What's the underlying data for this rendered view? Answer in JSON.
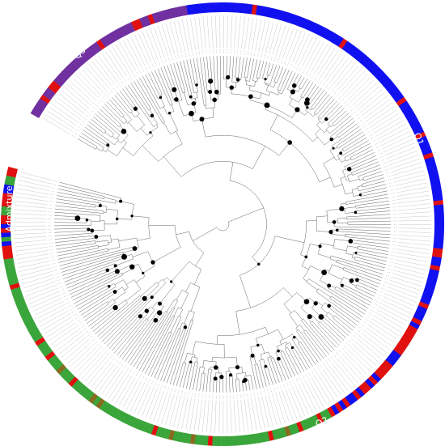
{
  "groups": [
    {
      "label": "Q1"
    },
    {
      "label": "Q2"
    },
    {
      "label": "Q3"
    },
    {
      "label": "Admixture"
    }
  ]
}
